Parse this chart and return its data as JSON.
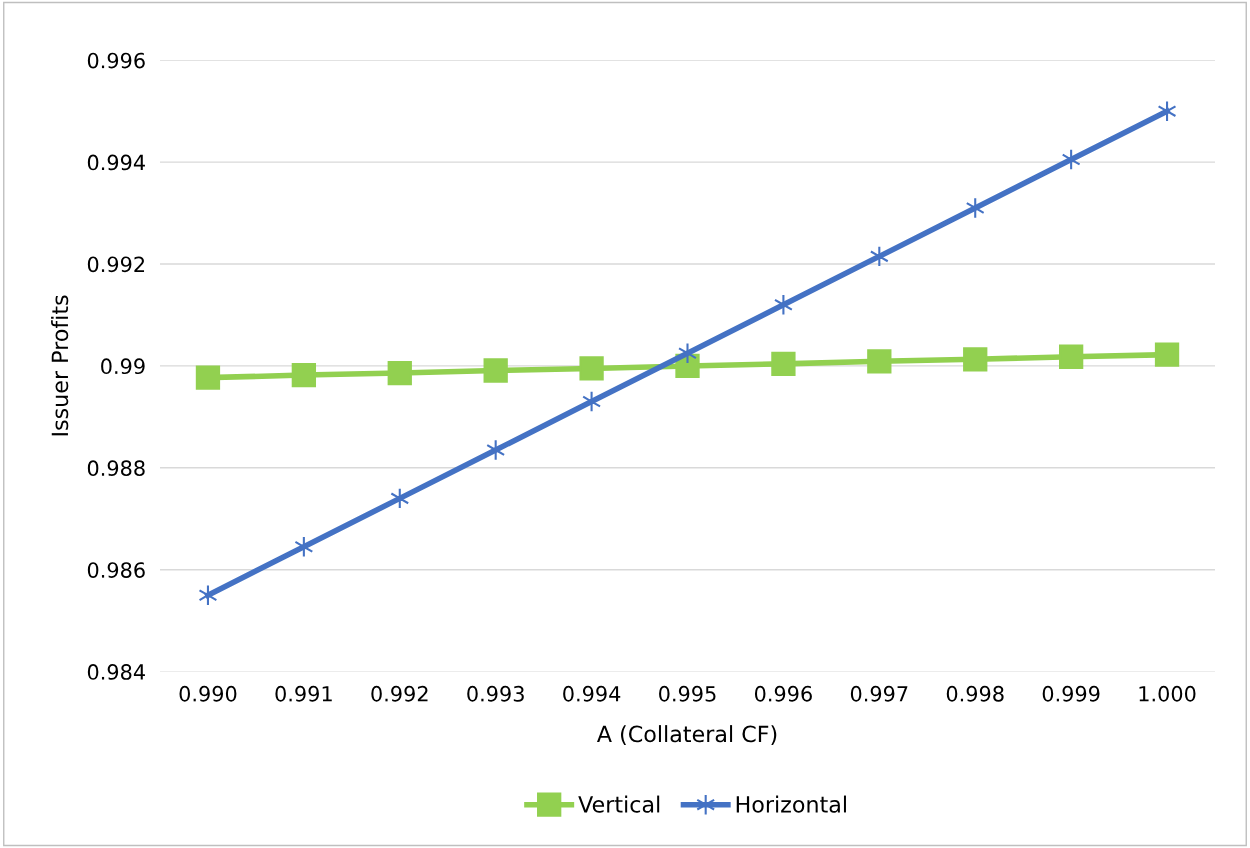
{
  "chart_data": {
    "type": "line",
    "xlabel": "A (Collateral CF)",
    "ylabel": "Issuer Profits",
    "categories": [
      "0.990",
      "0.991",
      "0.992",
      "0.993",
      "0.994",
      "0.995",
      "0.996",
      "0.997",
      "0.998",
      "0.999",
      "1.000"
    ],
    "series": [
      {
        "name": "Vertical",
        "color": "#92d050",
        "marker": "square",
        "values": [
          0.98977,
          0.98982,
          0.98986,
          0.98991,
          0.98995,
          0.99,
          0.99004,
          0.99009,
          0.99013,
          0.99018,
          0.99022
        ]
      },
      {
        "name": "Horizontal",
        "color": "#4472c4",
        "marker": "cross",
        "values": [
          0.9855,
          0.98645,
          0.9874,
          0.98835,
          0.9893,
          0.99025,
          0.9912,
          0.99215,
          0.9931,
          0.99405,
          0.995
        ]
      }
    ],
    "ylim": [
      0.984,
      0.996
    ],
    "yticks": [
      0.984,
      0.986,
      0.988,
      0.99,
      0.992,
      0.994,
      0.996
    ],
    "grid": "y",
    "legend": "bottom",
    "line_style": "solid"
  }
}
